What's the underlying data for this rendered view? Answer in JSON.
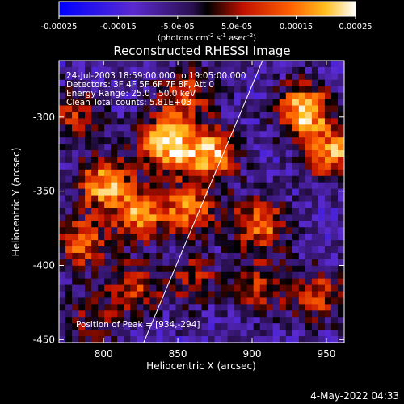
{
  "chart_data": {
    "type": "heatmap",
    "title": "Reconstructed RHESSI Image",
    "xlabel": "Heliocentric X (arcsec)",
    "ylabel": "Heliocentric Y (arcsec)",
    "xlim": [
      770,
      962
    ],
    "ylim": [
      -452,
      -262
    ],
    "x_ticks": [
      800,
      850,
      900,
      950
    ],
    "y_ticks": [
      -300,
      -350,
      -400,
      -450
    ],
    "colorbar": {
      "label_prefix": "(photons cm",
      "label_sup1": "-2",
      "label_mid1": " s",
      "label_sup2": "-1",
      "label_mid2": " asec",
      "label_sup3": "-2",
      "label_suffix": ")",
      "range": [
        -0.00025,
        0.00025
      ],
      "tick_labels": [
        "-0.00025",
        "-0.00015",
        "-5.0e-05",
        "5.0e-05",
        "0.00015",
        "0.00025"
      ],
      "tick_values": [
        -0.00025,
        -0.00015,
        -5e-05,
        5e-05,
        0.00015,
        0.00025
      ]
    },
    "annotations": {
      "time": "24-Jul-2003 18:59:00.000 to 19:05:00.000",
      "detectors": "Detectors: 3F 4F 5F 6F 7F 8F, Att 0",
      "energy": "Energy Range: 25.0 - 50.0 keV",
      "clean": "Clean    Total counts: 5.81E+03",
      "peak": "Position of Peak = [934,-294]"
    },
    "limb_line": {
      "x": [
        827,
        907
      ],
      "y": [
        -452,
        -262
      ]
    },
    "bright_regions": [
      {
        "x": 842,
        "y": -318,
        "strength": 1.0
      },
      {
        "x": 872,
        "y": -325,
        "strength": 0.9
      },
      {
        "x": 800,
        "y": -345,
        "strength": 0.85
      },
      {
        "x": 825,
        "y": -365,
        "strength": 0.75
      },
      {
        "x": 858,
        "y": -362,
        "strength": 0.7
      },
      {
        "x": 905,
        "y": -372,
        "strength": 0.75
      },
      {
        "x": 935,
        "y": -296,
        "strength": 1.0
      },
      {
        "x": 955,
        "y": -325,
        "strength": 0.8
      },
      {
        "x": 785,
        "y": -385,
        "strength": 0.65
      },
      {
        "x": 820,
        "y": -415,
        "strength": 0.55
      },
      {
        "x": 860,
        "y": -410,
        "strength": 0.45
      },
      {
        "x": 905,
        "y": -415,
        "strength": 0.5
      },
      {
        "x": 945,
        "y": -420,
        "strength": 0.55
      },
      {
        "x": 790,
        "y": -440,
        "strength": 0.4
      },
      {
        "x": 855,
        "y": -285,
        "strength": 0.6
      },
      {
        "x": 780,
        "y": -300,
        "strength": 0.5
      }
    ]
  },
  "footer": {
    "date": "4-May-2022 04:33"
  }
}
